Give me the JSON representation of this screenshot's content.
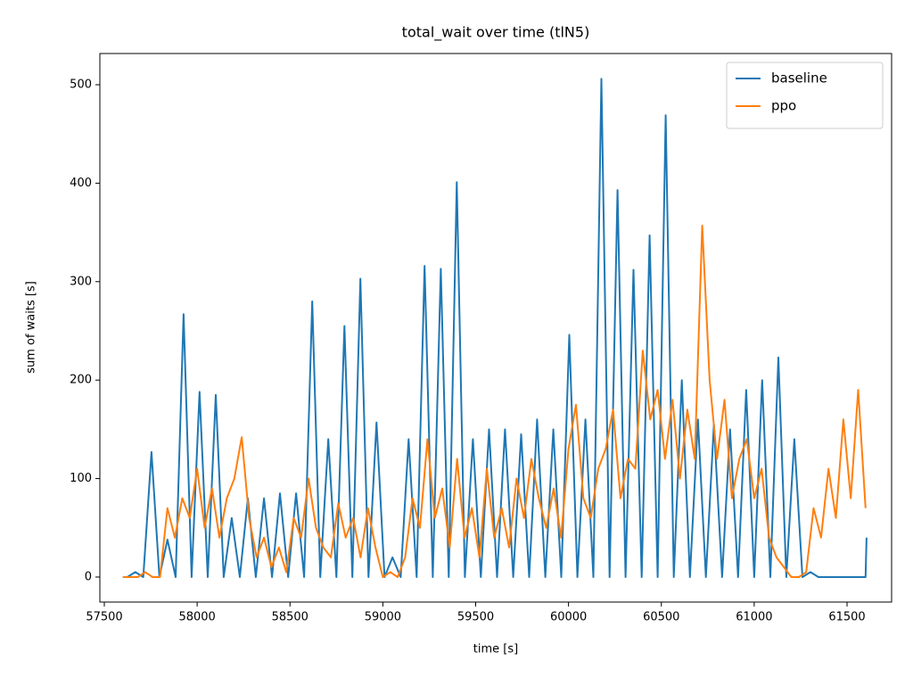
{
  "chart_data": {
    "type": "line",
    "title": "total_wait over time (tlN5)",
    "x_label": "time [s]",
    "y_label": "sum of waits [s]",
    "legend": "upper right",
    "xlim": [
      57476,
      61740
    ],
    "ylim": [
      -25.4,
      531.7
    ],
    "xticks": [
      57500,
      58000,
      58500,
      59000,
      59500,
      60000,
      60500,
      61000,
      61500
    ],
    "yticks": [
      0,
      100,
      200,
      300,
      400,
      500
    ],
    "series": [
      {
        "name": "baseline",
        "color": "#1f77b4",
        "x": [
          57600,
          57624,
          57667,
          57710,
          57754,
          57797,
          57840,
          57884,
          57927,
          57970,
          58013,
          58057,
          58100,
          58143,
          58186,
          58230,
          58273,
          58316,
          58360,
          58403,
          58446,
          58490,
          58533,
          58576,
          58620,
          58663,
          58706,
          58750,
          58793,
          58836,
          58879,
          58923,
          58966,
          59009,
          59052,
          59096,
          59139,
          59182,
          59225,
          59269,
          59312,
          59355,
          59398,
          59442,
          59485,
          59528,
          59572,
          59615,
          59658,
          59702,
          59745,
          59788,
          59831,
          59875,
          59918,
          59961,
          60004,
          60048,
          60091,
          60134,
          60177,
          60221,
          60264,
          60307,
          60350,
          60394,
          60437,
          60480,
          60523,
          60567,
          60610,
          60654,
          60697,
          60740,
          60783,
          60827,
          60870,
          60913,
          60957,
          61000,
          61043,
          61087,
          61130,
          61173,
          61216,
          61260,
          61303,
          61346,
          61390,
          61600,
          61605
        ],
        "values": [
          0,
          0,
          5,
          0,
          127,
          0,
          38,
          0,
          267,
          0,
          188,
          0,
          185,
          0,
          60,
          0,
          80,
          0,
          80,
          0,
          85,
          0,
          85,
          0,
          280,
          0,
          140,
          0,
          255,
          0,
          303,
          0,
          157,
          0,
          20,
          0,
          140,
          0,
          316,
          0,
          313,
          0,
          401,
          0,
          140,
          0,
          150,
          0,
          150,
          0,
          145,
          0,
          160,
          0,
          150,
          0,
          246,
          0,
          160,
          0,
          506,
          0,
          393,
          0,
          312,
          0,
          347,
          0,
          469,
          0,
          200,
          0,
          160,
          0,
          155,
          0,
          150,
          0,
          190,
          0,
          200,
          0,
          223,
          0,
          140,
          0,
          5,
          0,
          0,
          0,
          40
        ]
      },
      {
        "name": "ppo",
        "color": "#ff7f0e",
        "x": [
          57600,
          57640,
          57680,
          57720,
          57760,
          57800,
          57840,
          57880,
          57920,
          57960,
          58000,
          58040,
          58080,
          58120,
          58160,
          58200,
          58240,
          58280,
          58320,
          58360,
          58400,
          58440,
          58480,
          58520,
          58560,
          58600,
          58640,
          58680,
          58720,
          58760,
          58800,
          58840,
          58880,
          58920,
          58960,
          59000,
          59040,
          59080,
          59120,
          59160,
          59200,
          59240,
          59280,
          59320,
          59360,
          59400,
          59440,
          59480,
          59520,
          59560,
          59600,
          59640,
          59680,
          59720,
          59760,
          59800,
          59840,
          59880,
          59920,
          59960,
          60000,
          60040,
          60080,
          60120,
          60160,
          60200,
          60240,
          60280,
          60320,
          60360,
          60400,
          60440,
          60480,
          60520,
          60560,
          60600,
          60640,
          60680,
          60720,
          60760,
          60800,
          60840,
          60880,
          60920,
          60960,
          61000,
          61040,
          61080,
          61120,
          61160,
          61200,
          61240,
          61280,
          61320,
          61360,
          61400,
          61440,
          61480,
          61520,
          61560,
          61600
        ],
        "values": [
          0,
          0,
          0,
          5,
          0,
          0,
          70,
          40,
          80,
          60,
          110,
          50,
          90,
          40,
          80,
          100,
          142,
          60,
          20,
          40,
          10,
          30,
          5,
          60,
          40,
          100,
          50,
          30,
          20,
          75,
          40,
          60,
          20,
          70,
          30,
          0,
          5,
          0,
          20,
          80,
          50,
          140,
          60,
          90,
          30,
          120,
          40,
          70,
          20,
          110,
          40,
          70,
          30,
          100,
          60,
          120,
          80,
          50,
          90,
          40,
          130,
          175,
          80,
          60,
          110,
          130,
          170,
          80,
          120,
          110,
          230,
          160,
          190,
          120,
          180,
          100,
          170,
          120,
          357,
          200,
          120,
          180,
          80,
          120,
          140,
          80,
          110,
          40,
          20,
          10,
          0,
          0,
          5,
          70,
          40,
          110,
          60,
          160,
          80,
          190,
          70
        ]
      }
    ]
  }
}
